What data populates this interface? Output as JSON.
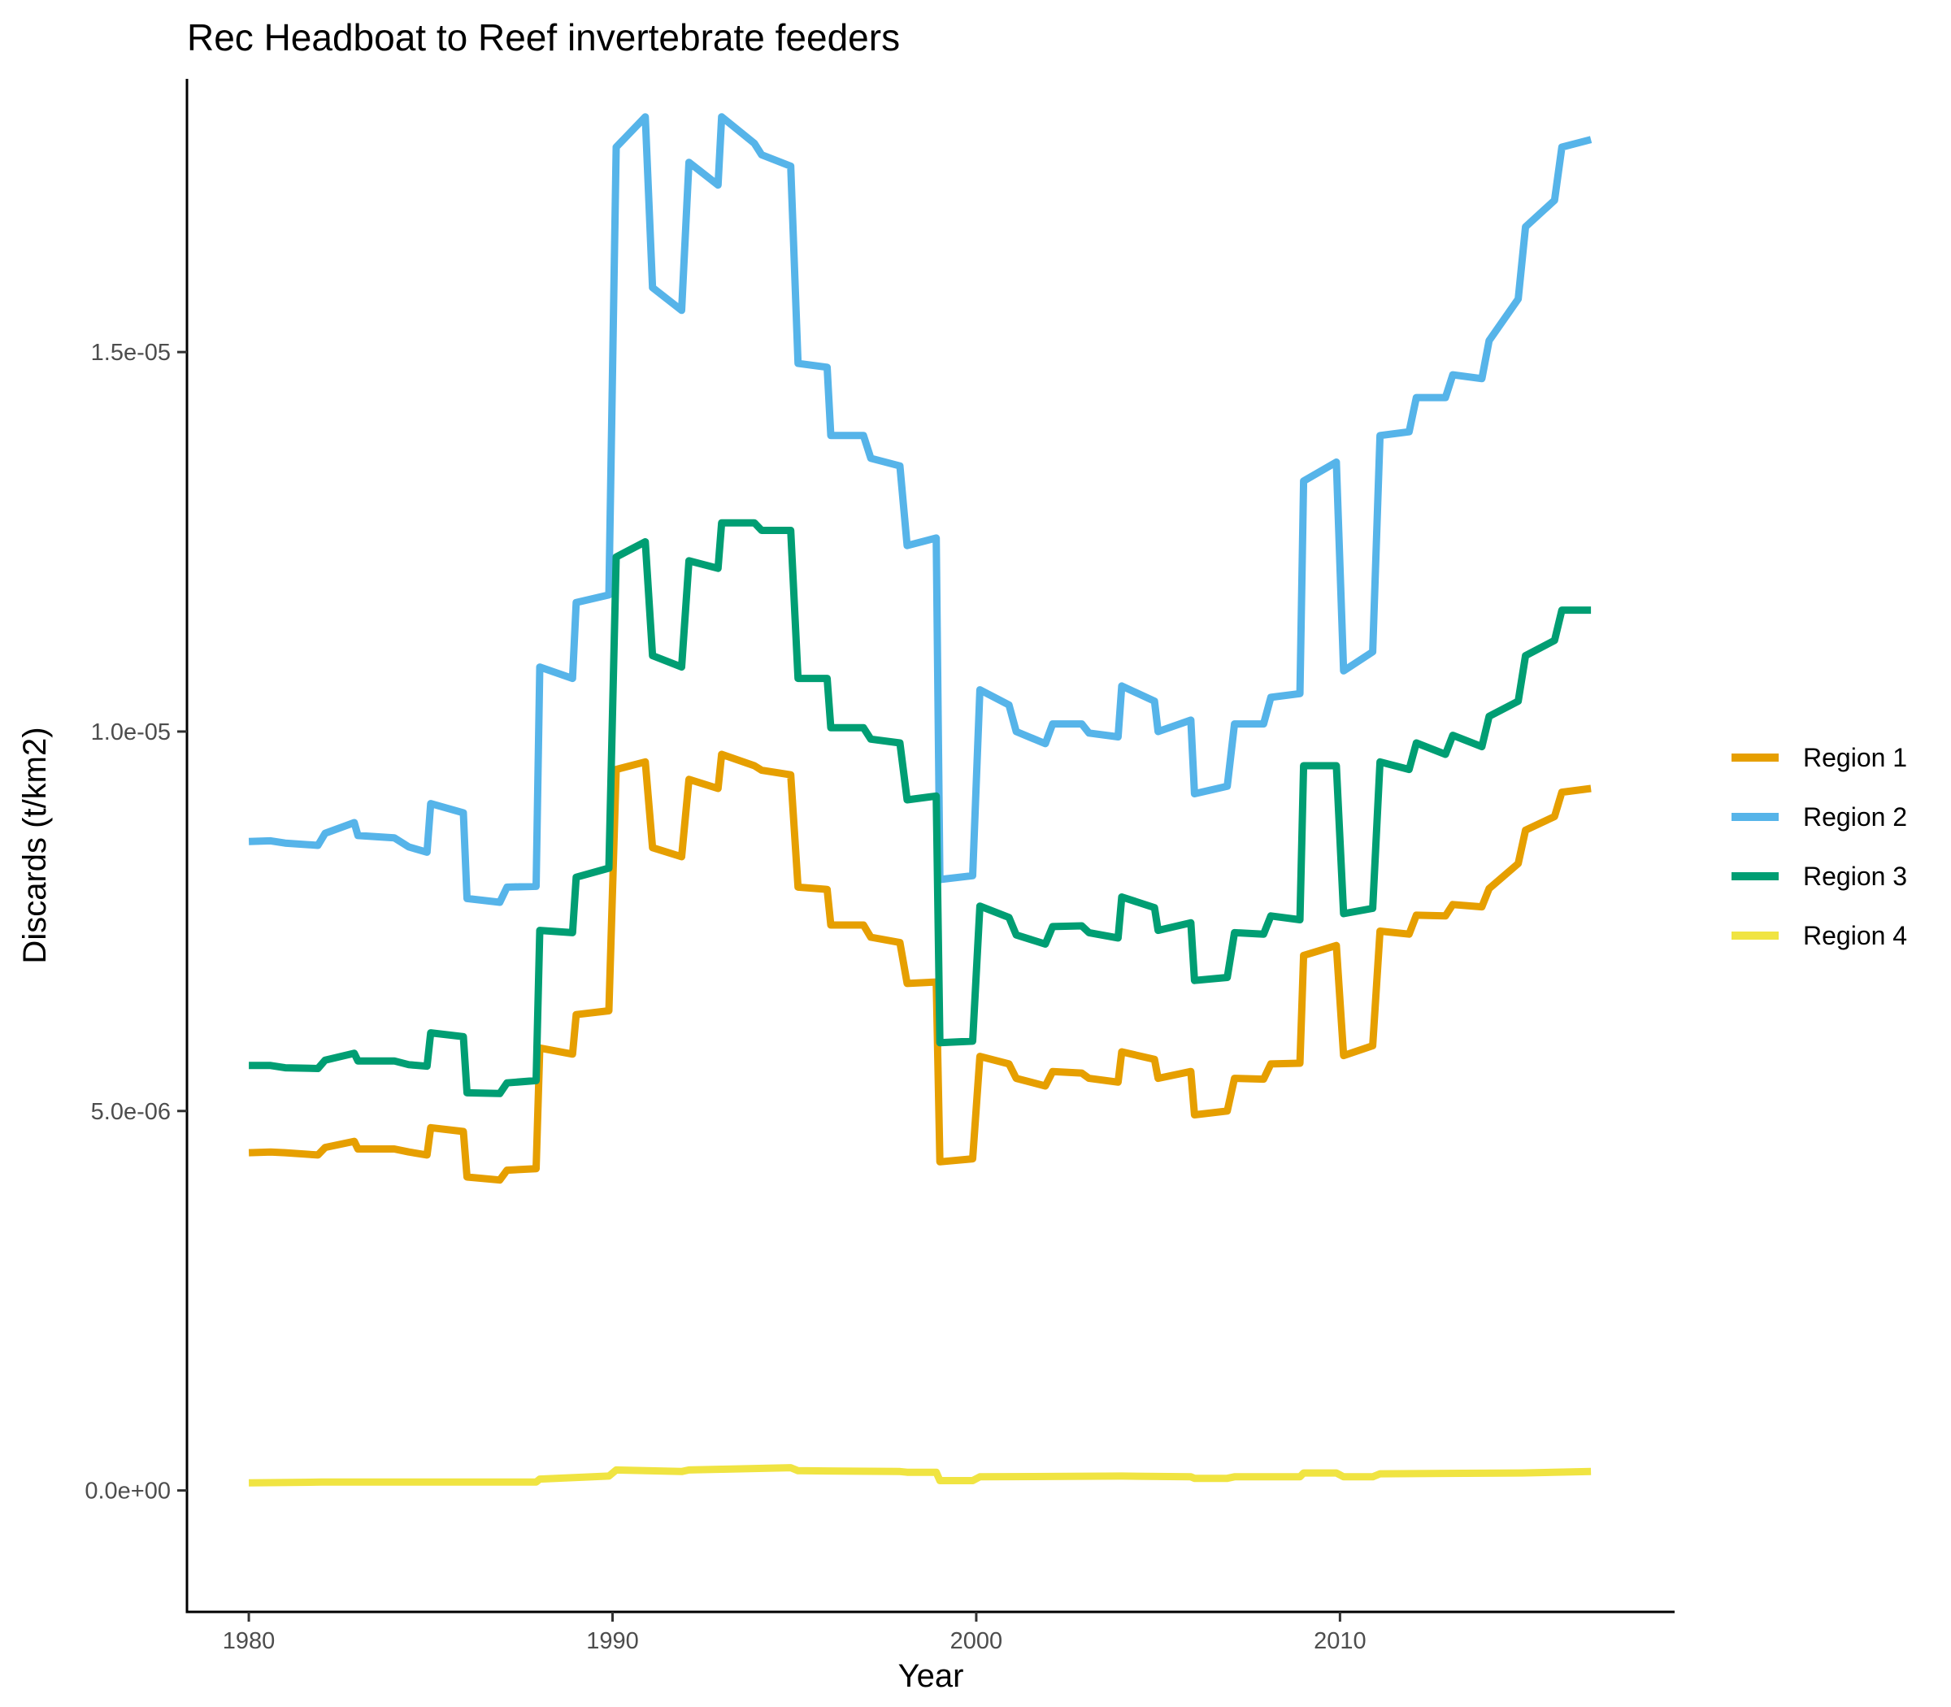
{
  "chart_data": {
    "type": "line",
    "title": "Rec Headboat to Reef invertebrate feeders",
    "xlabel": "Year",
    "ylabel": "Discards (t/km2)",
    "xlim": [
      1978.3,
      2019.2
    ],
    "ylim": [
      -1.6e-06,
      1.86e-05
    ],
    "x_ticks": [
      1980,
      1990,
      2000,
      2010
    ],
    "x_tick_labels": [
      "1980",
      "1990",
      "2000",
      "2010"
    ],
    "y_ticks": [
      0,
      5e-06,
      1e-05,
      1.5e-05
    ],
    "y_tick_labels": [
      "0.0e+00",
      "5.0e-06",
      "1.0e-05",
      "1.5e-05"
    ],
    "grid": false,
    "legend_position": "right",
    "series": [
      {
        "name": "Region 1",
        "color": "#E69F00",
        "x": [
          1980.0,
          1980.6,
          1981.0,
          1981.9,
          1982.1,
          1982.9,
          1983.0,
          1984.0,
          1984.4,
          1984.9,
          1985.0,
          1985.9,
          1986.0,
          1986.9,
          1987.1,
          1987.9,
          1988.0,
          1988.9,
          1989.0,
          1989.9,
          1990.1,
          1990.9,
          1991.1,
          1991.9,
          1992.1,
          1992.9,
          1993.0,
          1993.9,
          1994.1,
          1994.9,
          1995.1,
          1995.9,
          1996.0,
          1996.9,
          1997.1,
          1997.9,
          1998.1,
          1998.9,
          1999.0,
          1999.9,
          2000.1,
          2000.9,
          2001.1,
          2001.9,
          2002.1,
          2002.9,
          2003.1,
          2003.9,
          2004.0,
          2004.9,
          2005.0,
          2005.9,
          2006.0,
          2006.9,
          2007.1,
          2007.9,
          2008.1,
          2008.9,
          2009.0,
          2009.9,
          2010.1,
          2010.9,
          2011.1,
          2011.9,
          2012.1,
          2012.9,
          2013.1,
          2013.9,
          2014.1,
          2014.9,
          2015.1,
          2015.9,
          2016.1,
          2016.9
        ],
        "y": [
          4.45e-06,
          4.46e-06,
          4.45e-06,
          4.42e-06,
          4.52e-06,
          4.6e-06,
          4.5e-06,
          4.5e-06,
          4.46e-06,
          4.42e-06,
          4.78e-06,
          4.73e-06,
          4.13e-06,
          4.09e-06,
          4.22e-06,
          4.24e-06,
          5.83e-06,
          5.75e-06,
          6.27e-06,
          6.32e-06,
          9.5e-06,
          9.6e-06,
          8.47e-06,
          8.35e-06,
          9.37e-06,
          9.25e-06,
          9.7e-06,
          9.55e-06,
          9.49e-06,
          9.43e-06,
          7.95e-06,
          7.92e-06,
          7.45e-06,
          7.45e-06,
          7.29e-06,
          7.22e-06,
          6.68e-06,
          6.7e-06,
          4.33e-06,
          4.37e-06,
          5.72e-06,
          5.62e-06,
          5.43e-06,
          5.33e-06,
          5.52e-06,
          5.5e-06,
          5.43e-06,
          5.38e-06,
          5.78e-06,
          5.68e-06,
          5.43e-06,
          5.52e-06,
          4.95e-06,
          5e-06,
          5.43e-06,
          5.42e-06,
          5.62e-06,
          5.63e-06,
          7.05e-06,
          7.18e-06,
          5.73e-06,
          5.86e-06,
          7.37e-06,
          7.33e-06,
          7.58e-06,
          7.57e-06,
          7.72e-06,
          7.69e-06,
          7.93e-06,
          8.26e-06,
          8.7e-06,
          8.88e-06,
          9.2e-06,
          9.25e-06
        ]
      },
      {
        "name": "Region 2",
        "color": "#56B4E9",
        "x": [
          1980.0,
          1980.6,
          1981.0,
          1981.9,
          1982.1,
          1982.9,
          1983.0,
          1984.0,
          1984.4,
          1984.9,
          1985.0,
          1985.9,
          1986.0,
          1986.9,
          1987.1,
          1987.9,
          1988.0,
          1988.9,
          1989.0,
          1989.9,
          1990.1,
          1990.9,
          1991.1,
          1991.9,
          1992.1,
          1992.9,
          1993.0,
          1993.9,
          1994.1,
          1994.9,
          1995.1,
          1995.9,
          1996.0,
          1996.9,
          1997.1,
          1997.9,
          1998.1,
          1998.9,
          1999.0,
          1999.9,
          2000.1,
          2000.9,
          2001.1,
          2001.9,
          2002.1,
          2002.9,
          2003.1,
          2003.9,
          2004.0,
          2004.9,
          2005.0,
          2005.9,
          2006.0,
          2006.9,
          2007.1,
          2007.9,
          2008.1,
          2008.9,
          2009.0,
          2009.9,
          2010.1,
          2010.9,
          2011.1,
          2011.9,
          2012.1,
          2012.9,
          2013.1,
          2013.9,
          2014.1,
          2014.9,
          2015.1,
          2015.9,
          2016.1,
          2016.9
        ],
        "y": [
          8.55e-06,
          8.56e-06,
          8.53e-06,
          8.5e-06,
          8.66e-06,
          8.8e-06,
          8.63e-06,
          8.6e-06,
          8.48e-06,
          8.41e-06,
          9.05e-06,
          8.93e-06,
          7.8e-06,
          7.75e-06,
          7.95e-06,
          7.96e-06,
          1.085e-05,
          1.07e-05,
          1.17e-05,
          1.18e-05,
          1.77e-05,
          1.81e-05,
          1.585e-05,
          1.555e-05,
          1.75e-05,
          1.72e-05,
          1.81e-05,
          1.775e-05,
          1.76e-05,
          1.745e-05,
          1.485e-05,
          1.48e-05,
          1.39e-05,
          1.39e-05,
          1.36e-05,
          1.35e-05,
          1.245e-05,
          1.255e-05,
          8.05e-06,
          8.1e-06,
          1.055e-05,
          1.035e-05,
          1e-05,
          9.84e-06,
          1.01e-05,
          1.01e-05,
          9.98e-06,
          9.93e-06,
          1.06e-05,
          1.04e-05,
          1e-05,
          1.015e-05,
          9.18e-06,
          9.28e-06,
          1.01e-05,
          1.01e-05,
          1.045e-05,
          1.05e-05,
          1.33e-05,
          1.355e-05,
          1.08e-05,
          1.105e-05,
          1.39e-05,
          1.395e-05,
          1.44e-05,
          1.44e-05,
          1.47e-05,
          1.465e-05,
          1.515e-05,
          1.57e-05,
          1.665e-05,
          1.7e-05,
          1.77e-05,
          1.78e-05
        ]
      },
      {
        "name": "Region 3",
        "color": "#009E73",
        "x": [
          1980.0,
          1980.6,
          1981.0,
          1981.9,
          1982.1,
          1982.9,
          1983.0,
          1984.0,
          1984.4,
          1984.9,
          1985.0,
          1985.9,
          1986.0,
          1986.9,
          1987.1,
          1987.9,
          1988.0,
          1988.9,
          1989.0,
          1989.9,
          1990.1,
          1990.9,
          1991.1,
          1991.9,
          1992.1,
          1992.9,
          1993.0,
          1993.9,
          1994.1,
          1994.9,
          1995.1,
          1995.9,
          1996.0,
          1996.9,
          1997.1,
          1997.9,
          1998.1,
          1998.9,
          1999.0,
          1999.9,
          2000.1,
          2000.9,
          2001.1,
          2001.9,
          2002.1,
          2002.9,
          2003.1,
          2003.9,
          2004.0,
          2004.9,
          2005.0,
          2005.9,
          2006.0,
          2006.9,
          2007.1,
          2007.9,
          2008.1,
          2008.9,
          2009.0,
          2009.9,
          2010.1,
          2010.9,
          2011.1,
          2011.9,
          2012.1,
          2012.9,
          2013.1,
          2013.9,
          2014.1,
          2014.9,
          2015.1,
          2015.9,
          2016.1,
          2016.9
        ],
        "y": [
          5.6e-06,
          5.6e-06,
          5.57e-06,
          5.56e-06,
          5.67e-06,
          5.76e-06,
          5.66e-06,
          5.66e-06,
          5.61e-06,
          5.59e-06,
          6.03e-06,
          5.98e-06,
          5.24e-06,
          5.23e-06,
          5.37e-06,
          5.4e-06,
          7.38e-06,
          7.35e-06,
          8.08e-06,
          8.2e-06,
          1.23e-05,
          1.25e-05,
          1.1e-05,
          1.085e-05,
          1.225e-05,
          1.215e-05,
          1.275e-05,
          1.275e-05,
          1.265e-05,
          1.265e-05,
          1.07e-05,
          1.07e-05,
          1.005e-05,
          1.005e-05,
          9.9e-06,
          9.85e-06,
          9.1e-06,
          9.15e-06,
          5.9e-06,
          5.92e-06,
          7.7e-06,
          7.55e-06,
          7.32e-06,
          7.2e-06,
          7.43e-06,
          7.44e-06,
          7.35e-06,
          7.28e-06,
          7.82e-06,
          7.68e-06,
          7.38e-06,
          7.48e-06,
          6.72e-06,
          6.76e-06,
          7.35e-06,
          7.33e-06,
          7.57e-06,
          7.52e-06,
          9.55e-06,
          9.55e-06,
          7.6e-06,
          7.67e-06,
          9.6e-06,
          9.5e-06,
          9.85e-06,
          9.7e-06,
          9.95e-06,
          9.8e-06,
          1.02e-05,
          1.04e-05,
          1.1e-05,
          1.12e-05,
          1.16e-05,
          1.16e-05
        ]
      },
      {
        "name": "Region 4",
        "color": "#F0E442",
        "x": [
          1980.0,
          1982.0,
          1984.0,
          1986.0,
          1987.9,
          1988.0,
          1989.9,
          1990.1,
          1991.9,
          1992.1,
          1993.0,
          1994.9,
          1995.1,
          1997.9,
          1998.1,
          1998.9,
          1999.0,
          1999.9,
          2000.1,
          2004.0,
          2005.9,
          2006.0,
          2006.9,
          2007.1,
          2008.9,
          2009.0,
          2009.9,
          2010.1,
          2010.9,
          2011.1,
          2015.0,
          2016.9
        ],
        "y": [
          1e-07,
          1.1e-07,
          1.1e-07,
          1.1e-07,
          1.1e-07,
          1.5e-07,
          1.9e-07,
          2.7e-07,
          2.5e-07,
          2.7e-07,
          2.8e-07,
          3e-07,
          2.6e-07,
          2.5e-07,
          2.4e-07,
          2.4e-07,
          1.3e-07,
          1.3e-07,
          1.8e-07,
          1.9e-07,
          1.8e-07,
          1.6e-07,
          1.6e-07,
          1.8e-07,
          1.8e-07,
          2.3e-07,
          2.3e-07,
          1.8e-07,
          1.8e-07,
          2.2e-07,
          2.3e-07,
          2.5e-07
        ]
      }
    ]
  }
}
